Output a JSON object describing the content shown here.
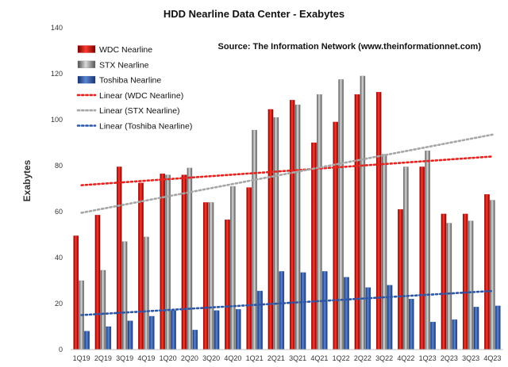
{
  "chart_data": {
    "type": "bar",
    "title": "HDD Nearline Data Center - Exabytes",
    "subtitle": "Source: The Information Network (www.theinformationnet.com)",
    "xlabel": "",
    "ylabel": "Exabytes",
    "ylim": [
      0,
      140
    ],
    "yticks": [
      0,
      20,
      40,
      60,
      80,
      100,
      120,
      140
    ],
    "grid": false,
    "legend_position": "top-left",
    "categories": [
      "1Q19",
      "2Q19",
      "3Q19",
      "4Q19",
      "1Q20",
      "2Q20",
      "3Q20",
      "4Q20",
      "1Q21",
      "2Q21",
      "3Q21",
      "4Q21",
      "1Q22",
      "2Q22",
      "3Q22",
      "4Q22",
      "1Q23",
      "2Q23",
      "3Q23",
      "4Q23"
    ],
    "series": [
      {
        "name": "WDC Nearline",
        "color": "#d11313",
        "values": [
          49.5,
          58.5,
          79.5,
          72.5,
          76.5,
          76,
          64,
          56.5,
          70.5,
          104.5,
          108.5,
          90,
          99,
          111,
          112,
          61,
          79.5,
          59,
          59,
          67.5
        ]
      },
      {
        "name": "STX Nearline",
        "color": "#8c8c8c",
        "values": [
          30,
          34.5,
          47,
          49,
          76,
          79,
          64,
          71,
          95.5,
          101,
          106.5,
          111,
          117.5,
          119,
          85,
          79.5,
          86.5,
          55,
          56,
          65
        ]
      },
      {
        "name": "Toshiba Nearline",
        "color": "#2e56a8",
        "values": [
          8,
          10,
          12.5,
          14.5,
          17,
          8.5,
          17,
          17.5,
          25.5,
          34,
          33.5,
          34,
          31.5,
          27,
          28,
          22,
          12,
          13,
          18.5,
          19
        ]
      }
    ],
    "trendlines": [
      {
        "name": "Linear (WDC Nearline)",
        "color": "#e8231f",
        "start": 71.5,
        "end": 84
      },
      {
        "name": "Linear (STX Nearline)",
        "color": "#a6a6a6",
        "start": 59.5,
        "end": 93.5
      },
      {
        "name": "Linear (Toshiba Nearline)",
        "color": "#2e56a8",
        "start": 15,
        "end": 25.5
      }
    ]
  }
}
